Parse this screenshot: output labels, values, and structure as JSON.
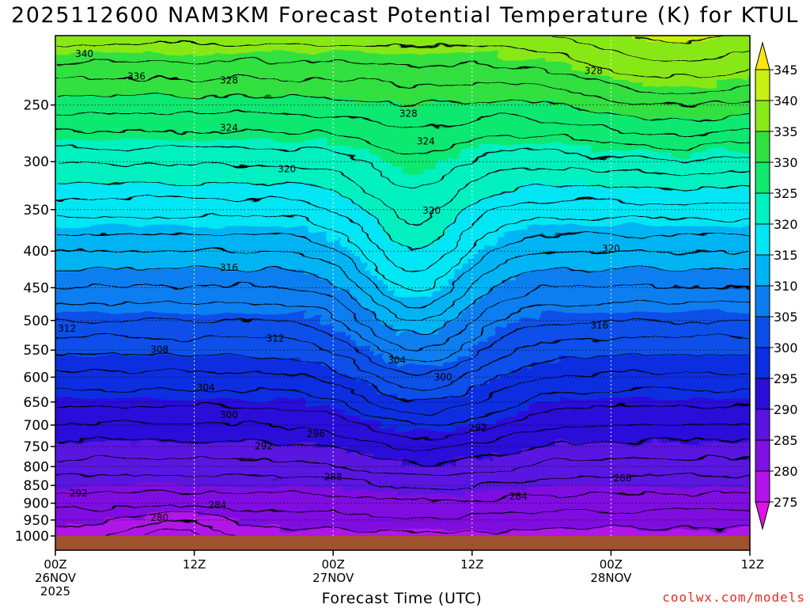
{
  "chart_data": {
    "type": "contour",
    "title": "2025112600 NAM3KM Forecast Potential Temperature (K) for KTUL",
    "xlabel": "Forecast Time (UTC)",
    "ylabel": "",
    "x_ticks": [
      {
        "hour": 0,
        "lines": [
          "00Z",
          "26NOV",
          "2025"
        ]
      },
      {
        "hour": 12,
        "lines": [
          "12Z"
        ]
      },
      {
        "hour": 24,
        "lines": [
          "00Z",
          "27NOV"
        ]
      },
      {
        "hour": 36,
        "lines": [
          "12Z"
        ]
      },
      {
        "hour": 48,
        "lines": [
          "00Z",
          "28NOV"
        ]
      },
      {
        "hour": 60,
        "lines": [
          "12Z"
        ]
      }
    ],
    "xlim": [
      0,
      60
    ],
    "y_ticks": [
      250,
      300,
      350,
      400,
      450,
      500,
      550,
      600,
      650,
      700,
      750,
      800,
      850,
      900,
      950,
      1000
    ],
    "ylim": [
      200,
      1000
    ],
    "y_scale": "log",
    "y_reversed": true,
    "colorbar": {
      "levels": [
        275,
        280,
        285,
        290,
        295,
        300,
        305,
        310,
        315,
        320,
        325,
        330,
        335,
        340,
        345
      ],
      "colors": [
        "#e010e8",
        "#b014e8",
        "#8010e0",
        "#5a14e0",
        "#2a0ed8",
        "#0a2ee0",
        "#0a50e8",
        "#0a7ef0",
        "#00b4f4",
        "#00e6f4",
        "#00f0c0",
        "#10e870",
        "#30e040",
        "#88e818",
        "#c8f010",
        "#f8e810"
      ]
    },
    "contour_interval": 2,
    "labeled_contours": [
      {
        "value": 340,
        "hour": 2.5,
        "pressure": 212
      },
      {
        "value": 336,
        "hour": 7,
        "pressure": 228
      },
      {
        "value": 328,
        "hour": 15,
        "pressure": 231
      },
      {
        "value": 324,
        "hour": 15,
        "pressure": 269
      },
      {
        "value": 320,
        "hour": 20,
        "pressure": 307
      },
      {
        "value": 316,
        "hour": 15,
        "pressure": 422
      },
      {
        "value": 312,
        "hour": 1,
        "pressure": 513
      },
      {
        "value": 308,
        "hour": 9,
        "pressure": 549
      },
      {
        "value": 312,
        "hour": 19,
        "pressure": 530
      },
      {
        "value": 304,
        "hour": 13,
        "pressure": 620
      },
      {
        "value": 300,
        "hour": 15,
        "pressure": 677
      },
      {
        "value": 296,
        "hour": 22.5,
        "pressure": 720
      },
      {
        "value": 292,
        "hour": 18,
        "pressure": 749
      },
      {
        "value": 292,
        "hour": 2,
        "pressure": 872
      },
      {
        "value": 288,
        "hour": 24,
        "pressure": 827
      },
      {
        "value": 284,
        "hour": 14,
        "pressure": 906
      },
      {
        "value": 280,
        "hour": 9,
        "pressure": 943
      },
      {
        "value": 328,
        "hour": 30.5,
        "pressure": 257
      },
      {
        "value": 324,
        "hour": 32,
        "pressure": 281
      },
      {
        "value": 320,
        "hour": 32.5,
        "pressure": 351
      },
      {
        "value": 304,
        "hour": 29.5,
        "pressure": 568
      },
      {
        "value": 300,
        "hour": 33.5,
        "pressure": 600
      },
      {
        "value": 292,
        "hour": 36.5,
        "pressure": 706
      },
      {
        "value": 284,
        "hour": 40,
        "pressure": 880
      },
      {
        "value": 328,
        "hour": 46.5,
        "pressure": 224
      },
      {
        "value": 320,
        "hour": 48,
        "pressure": 397
      },
      {
        "value": 316,
        "hour": 47,
        "pressure": 508
      },
      {
        "value": 288,
        "hour": 49,
        "pressure": 830
      }
    ],
    "underground_color": "#a0522d",
    "grid": "dotted",
    "credit": "coolwx.com/models"
  }
}
